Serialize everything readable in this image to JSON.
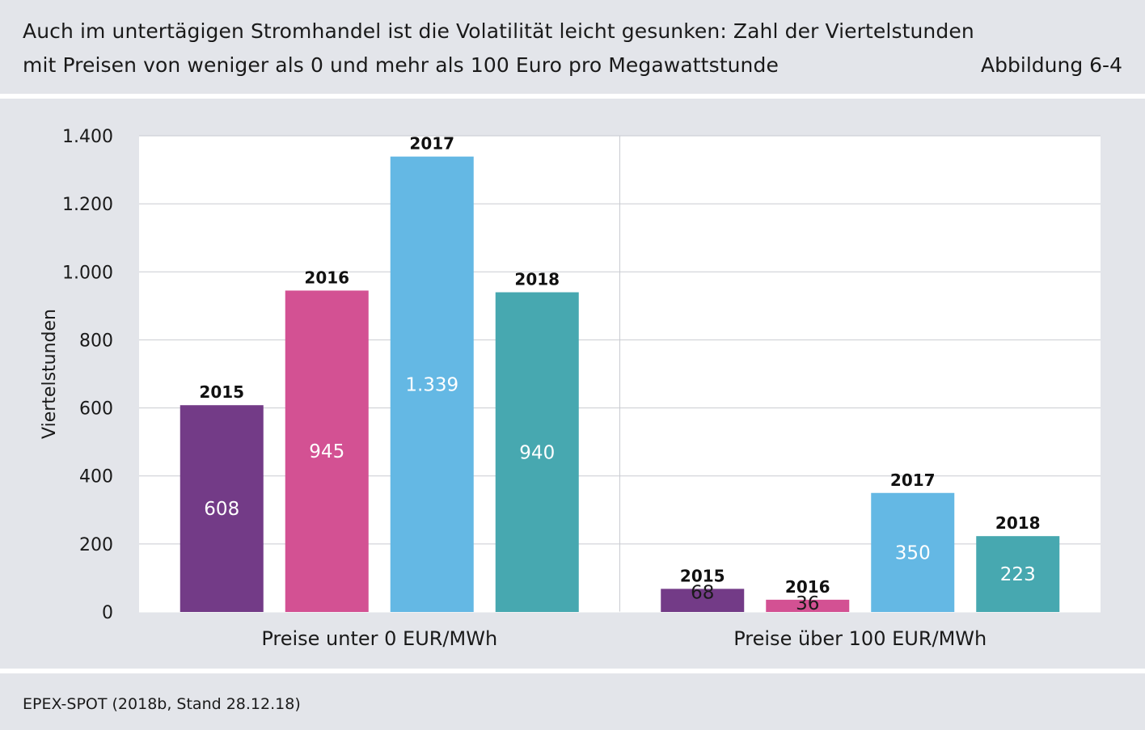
{
  "header": {
    "title_line1": "Auch im untertägigen Stromhandel ist die Volatilität leicht gesunken: Zahl der Viertelstunden",
    "title_line2": "mit Preisen von weniger als 0 und mehr als 100 Euro pro Megawattstunde",
    "figure_label": "Abbildung 6-4"
  },
  "footer": {
    "source": "EPEX-SPOT (2018b, Stand 28.12.18)"
  },
  "chart_data": {
    "type": "bar",
    "ylabel": "Viertelstunden",
    "ylim": [
      0,
      1400
    ],
    "yticks": [
      0,
      200,
      400,
      600,
      800,
      1000,
      1200,
      1400
    ],
    "ytick_labels": [
      "0",
      "200",
      "400",
      "600",
      "800",
      "1.000",
      "1.200",
      "1.400"
    ],
    "categories": [
      "Preise unter 0 EUR/MWh",
      "Preise über 100 EUR/MWh"
    ],
    "series": [
      {
        "name": "2015",
        "color": "#733b87",
        "values": [
          608,
          68
        ],
        "labels": [
          "608",
          "68"
        ]
      },
      {
        "name": "2016",
        "color": "#d35193",
        "values": [
          945,
          36
        ],
        "labels": [
          "945",
          "36"
        ]
      },
      {
        "name": "2017",
        "color": "#64b8e4",
        "values": [
          1339,
          350
        ],
        "labels": [
          "1.339",
          "350"
        ]
      },
      {
        "name": "2018",
        "color": "#47a8b0",
        "values": [
          940,
          223
        ],
        "labels": [
          "940",
          "223"
        ]
      }
    ],
    "grid": true
  }
}
